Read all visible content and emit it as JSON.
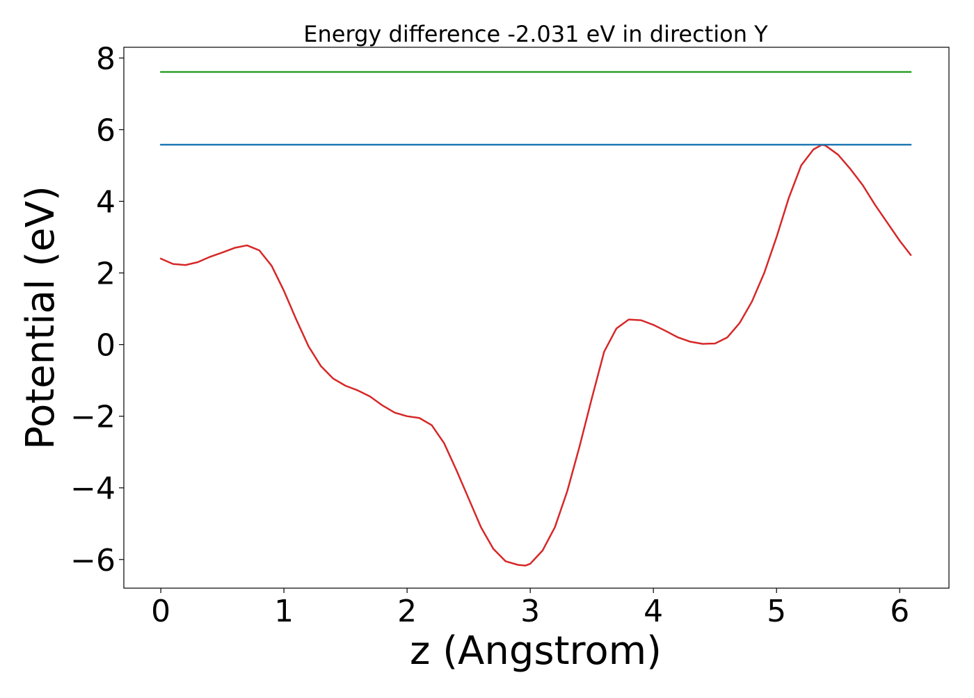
{
  "chart_data": {
    "type": "line",
    "title": "Energy difference -2.031 eV in direction Y",
    "xlabel": "z (Angstrom)",
    "ylabel": "Potential (eV)",
    "xlim": [
      -0.3,
      6.4
    ],
    "ylim": [
      -6.8,
      8.3
    ],
    "x_ticks": [
      0,
      1,
      2,
      3,
      4,
      5,
      6
    ],
    "x_tick_labels": [
      "0",
      "1",
      "2",
      "3",
      "4",
      "5",
      "6"
    ],
    "y_ticks": [
      -6,
      -4,
      -2,
      0,
      2,
      4,
      6,
      8
    ],
    "y_tick_labels": [
      "−6",
      "−4",
      "−2",
      "0",
      "2",
      "4",
      "6",
      "8"
    ],
    "grid": false,
    "legend": "none",
    "series": [
      {
        "color": "#d62728",
        "x": [
          0,
          0.1,
          0.2,
          0.3,
          0.4,
          0.5,
          0.6,
          0.7,
          0.8,
          0.9,
          1.0,
          1.1,
          1.2,
          1.3,
          1.4,
          1.5,
          1.6,
          1.7,
          1.8,
          1.9,
          2.0,
          2.1,
          2.2,
          2.3,
          2.4,
          2.5,
          2.6,
          2.7,
          2.8,
          2.9,
          2.96,
          3.0,
          3.1,
          3.2,
          3.3,
          3.4,
          3.5,
          3.6,
          3.7,
          3.8,
          3.9,
          4.0,
          4.1,
          4.2,
          4.3,
          4.4,
          4.5,
          4.6,
          4.7,
          4.8,
          4.9,
          5.0,
          5.1,
          5.2,
          5.3,
          5.37,
          5.4,
          5.5,
          5.6,
          5.7,
          5.8,
          5.9,
          6.0,
          6.09
        ],
        "y": [
          2.4,
          2.25,
          2.22,
          2.3,
          2.45,
          2.57,
          2.7,
          2.77,
          2.63,
          2.2,
          1.5,
          0.7,
          -0.05,
          -0.6,
          -0.95,
          -1.15,
          -1.28,
          -1.45,
          -1.7,
          -1.9,
          -2.0,
          -2.05,
          -2.25,
          -2.75,
          -3.5,
          -4.3,
          -5.1,
          -5.7,
          -6.05,
          -6.15,
          -6.17,
          -6.12,
          -5.75,
          -5.1,
          -4.1,
          -2.85,
          -1.5,
          -0.2,
          0.45,
          0.7,
          0.68,
          0.55,
          0.38,
          0.2,
          0.08,
          0.02,
          0.03,
          0.2,
          0.6,
          1.2,
          2.0,
          3.0,
          4.1,
          5.0,
          5.45,
          5.58,
          5.55,
          5.3,
          4.9,
          4.45,
          3.9,
          3.4,
          2.9,
          2.5
        ]
      },
      {
        "color": "#1f77b4",
        "x": [
          0,
          6.09
        ],
        "y": [
          5.58,
          5.58
        ]
      },
      {
        "color": "#2ca02c",
        "x": [
          0,
          6.09
        ],
        "y": [
          7.61,
          7.61
        ]
      }
    ]
  }
}
